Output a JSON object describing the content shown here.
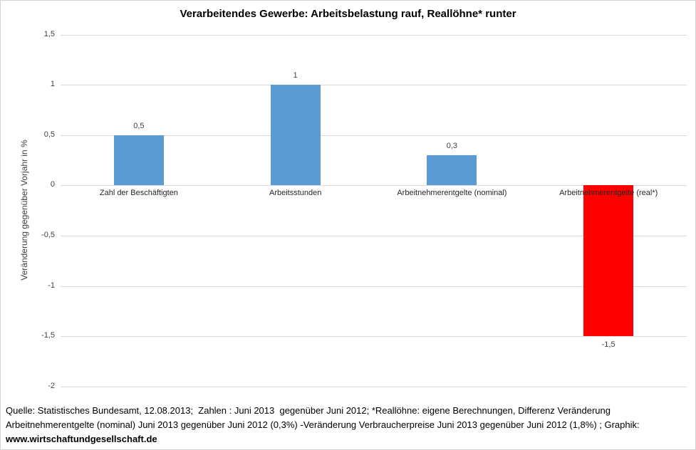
{
  "chart_data": {
    "type": "bar",
    "title": "Verarbeitendes Gewerbe: Arbeitsbelastung rauf, Reallöhne* runter",
    "xlabel": "",
    "ylabel": "Veränderung gegenüber Vorjahr in %",
    "categories": [
      "Zahl der Beschäftigten",
      "Arbeitsstunden",
      "Arbeitnehmerentgelte (nominal)",
      "Arbeitnehmerentgelte (real*)"
    ],
    "values": [
      0.5,
      1,
      0.3,
      -1.5
    ],
    "value_labels": [
      "0,5",
      "1",
      "0,3",
      "-1,5"
    ],
    "bar_colors": [
      "#5B9BD5",
      "#5B9BD5",
      "#5B9BD5",
      "#FF0000"
    ],
    "ylim": [
      -2,
      1.5
    ],
    "ytick_values": [
      1.5,
      1,
      0.5,
      0,
      -0.5,
      -1,
      -1.5,
      -2
    ],
    "ytick_labels": [
      "1,5",
      "1",
      "0,5",
      "0",
      "-0,5",
      "-1",
      "-1,5",
      "-2"
    ],
    "grid": true,
    "legend": "none",
    "colors": {
      "positive_bar": "#5B9BD5",
      "negative_bar": "#FF0000",
      "gridline": "#D9D9D9",
      "axis_text": "#404040",
      "title_text": "#000000"
    }
  },
  "footer": {
    "lines": [
      "Quelle: Statistisches Bundesamt, 12.08.2013;  Zahlen : Juni 2013  gegenüber Juni 2012; *Reallöhne: eigene Berechnungen, Differenz Veränderung",
      "Arbeitnehmerentgelte (nominal) Juni 2013 gegenüber Juni 2012 (0,3%) -Veränderung Verbraucherpreise Juni 2013 gegenüber Juni 2012 (1,8%) ; Graphik:",
      "www.wirtschaftundgesellschaft.de"
    ]
  }
}
